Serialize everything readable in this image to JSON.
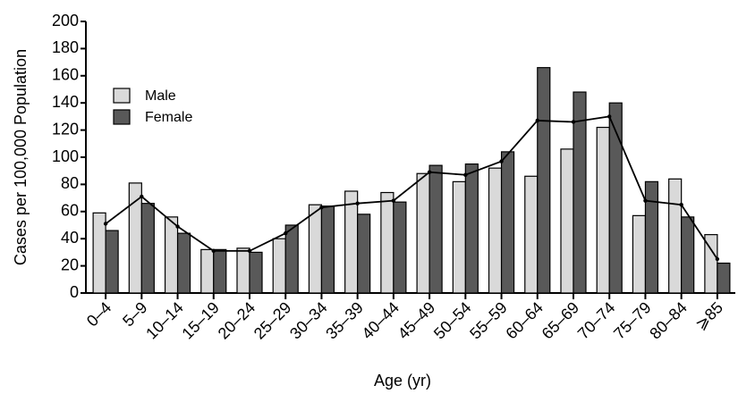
{
  "chart_data": {
    "type": "bar",
    "x_label": "Age (yr)",
    "y_label": "Cases per 100,000 Population",
    "categories": [
      "0–4",
      "5–9",
      "10–14",
      "15–19",
      "20–24",
      "25–29",
      "30–34",
      "35–39",
      "40–44",
      "45–49",
      "50–54",
      "55–59",
      "60–64",
      "65–69",
      "70–74",
      "75–79",
      "80–84",
      "⩾85"
    ],
    "series": [
      {
        "name": "Male",
        "color": "#d9d9d9",
        "values": [
          59,
          81,
          56,
          32,
          33,
          40,
          65,
          75,
          74,
          88,
          82,
          92,
          86,
          106,
          122,
          57,
          84,
          43
        ]
      },
      {
        "name": "Female",
        "color": "#595959",
        "values": [
          46,
          66,
          44,
          32,
          30,
          50,
          64,
          58,
          67,
          94,
          95,
          104,
          166,
          148,
          140,
          82,
          56,
          22
        ]
      }
    ],
    "line": {
      "color": "#000000",
      "values": [
        51,
        71,
        49,
        31,
        31,
        44,
        63,
        66,
        68,
        89,
        87,
        97,
        127,
        126,
        130,
        68,
        65,
        25
      ]
    },
    "ylim": [
      0,
      200
    ],
    "yticks": [
      0,
      20,
      40,
      60,
      80,
      100,
      120,
      140,
      160,
      180,
      200
    ]
  }
}
